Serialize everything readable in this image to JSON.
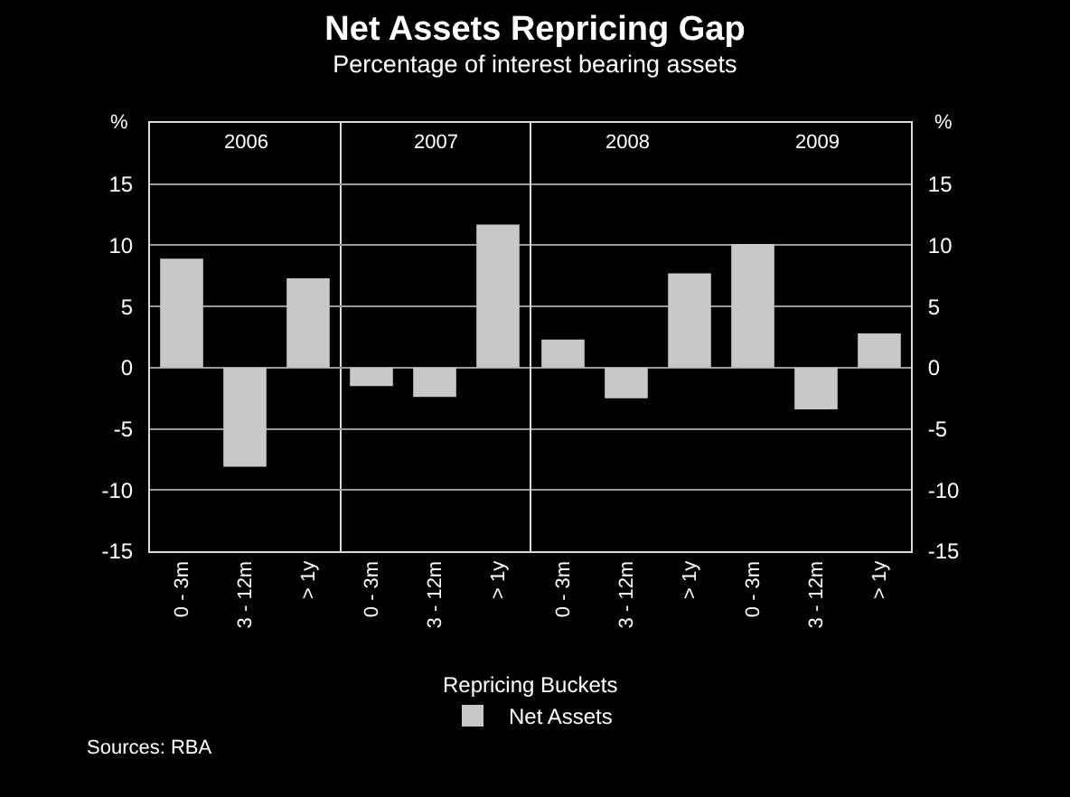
{
  "chart_data": [
    {
      "type": "other",
      "title": "Net Assets Repricing Gap",
      "subtitle": "Percentage of interest bearing assets"
    },
    {
      "type": "bar",
      "xlabel": "Repricing Buckets",
      "ylabel": "%",
      "annotations": [
        "2006",
        "Sources: RBA"
      ],
      "categories": [
        "0 - 3m",
        "3 - 12m",
        "> 1y"
      ],
      "series": [
        {
          "name": "Net Assets",
          "color": "#c8c8c8",
          "values": [
            8.9,
            -8.1,
            7.3
          ]
        }
      ],
      "ylim": [
        -15,
        20
      ],
      "yticks": [
        -15,
        -10,
        -5,
        0,
        5,
        10,
        15
      ],
      "grid": "y",
      "legend": "bottom"
    },
    {
      "type": "bar",
      "annotations": [
        "2007"
      ],
      "categories": [
        "0 - 3m",
        "3 - 12m",
        "> 1y"
      ],
      "series": [
        {
          "color": "#c8c8c8",
          "values": [
            -1.5,
            -2.4,
            11.7
          ]
        }
      ],
      "ylim": [
        -15,
        20
      ],
      "yticks": [
        -15,
        -10,
        -5,
        0,
        5,
        10,
        15
      ],
      "grid": "y",
      "tick_labels": "x"
    },
    {
      "type": "bar",
      "annotations": [
        "2008"
      ],
      "categories": [
        "0 - 3m",
        "3 - 12m",
        "> 1y"
      ],
      "series": [
        {
          "color": "#c8c8c8",
          "values": [
            2.3,
            -2.5,
            7.7
          ]
        }
      ],
      "ylim": [
        -15,
        20
      ],
      "yticks": [
        -15,
        -10,
        -5,
        0,
        5,
        10,
        15
      ],
      "grid": "y",
      "tick_labels": "x"
    },
    {
      "type": "bar",
      "annotations": [
        "2009"
      ],
      "y2label": "%",
      "categories": [
        "0 - 3m",
        "3 - 12m",
        "> 1y"
      ],
      "series": [
        {
          "color": "#c8c8c8",
          "values": [
            10.1,
            -3.4,
            2.8
          ],
          "axis": "y2"
        }
      ],
      "y2lim": [
        -15,
        20
      ],
      "y2ticks": [
        -15,
        -10,
        -5,
        0,
        5,
        10,
        15
      ],
      "grid": "y"
    }
  ]
}
